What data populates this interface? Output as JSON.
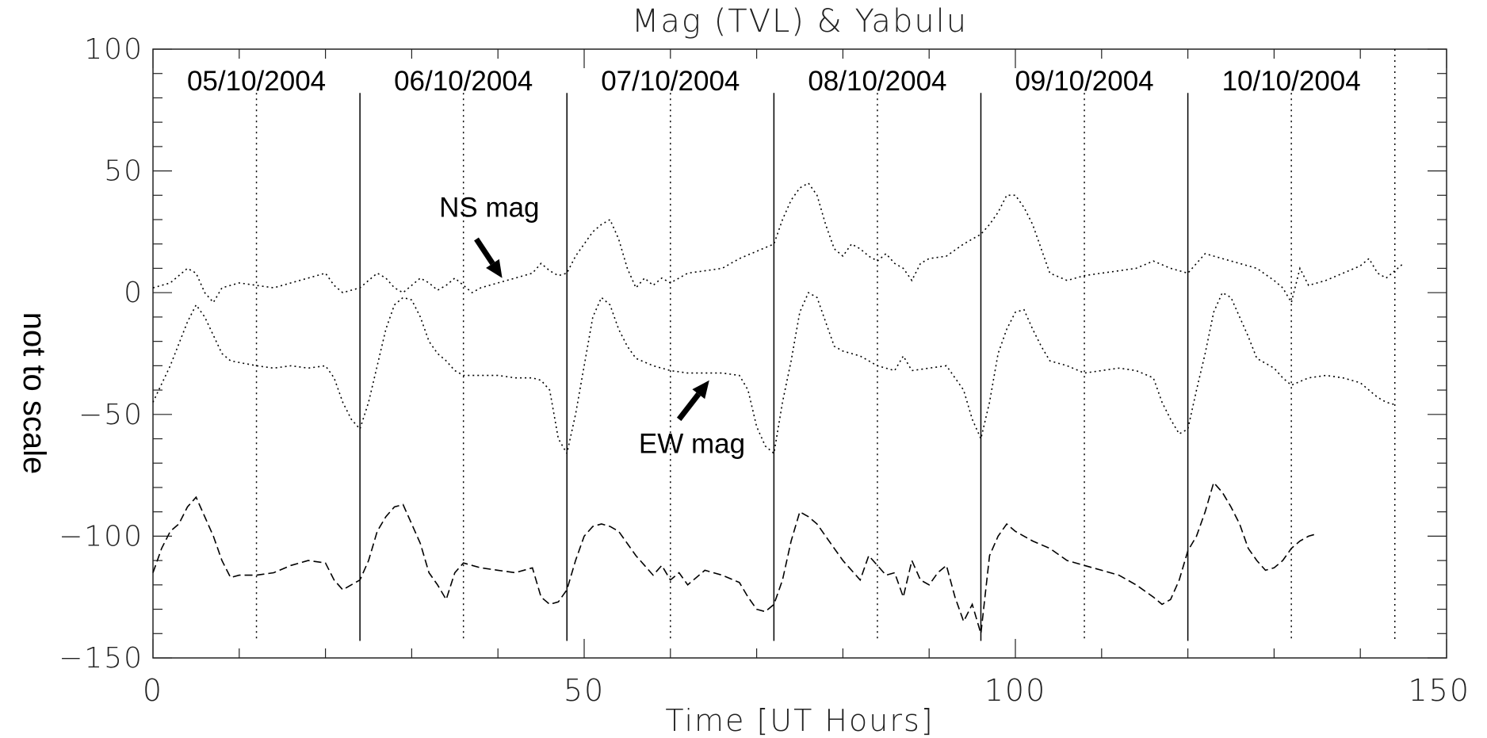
{
  "chart_data": {
    "type": "line",
    "title": "Mag (TVL) & Yabulu",
    "xlabel": "Time [UT Hours]",
    "ylabel": "not to scale",
    "xlim": [
      0,
      150
    ],
    "ylim": [
      -150,
      100
    ],
    "x_ticks": [
      0,
      50,
      100,
      150
    ],
    "x_tick_labels": [
      "0",
      "50",
      "100",
      "150"
    ],
    "y_ticks": [
      100,
      50,
      0,
      -50,
      -100,
      -150
    ],
    "y_tick_labels": [
      "100",
      "50",
      "0",
      "−50",
      "−100",
      "−150"
    ],
    "grid": false,
    "day_labels": [
      {
        "x": 12,
        "text": "05/10/2004"
      },
      {
        "x": 36,
        "text": "06/10/2004"
      },
      {
        "x": 60,
        "text": "07/10/2004"
      },
      {
        "x": 84,
        "text": "08/10/2004"
      },
      {
        "x": 108,
        "text": "09/10/2004"
      },
      {
        "x": 132,
        "text": "10/10/2004"
      }
    ],
    "day_boundaries": [
      24,
      48,
      72,
      96,
      120
    ],
    "midday_markers": [
      12,
      36,
      60,
      84,
      108,
      132,
      144
    ],
    "annotations": [
      {
        "text": "NS mag",
        "label_x": 39,
        "label_y": 35,
        "arrow_from": [
          37.5,
          22
        ],
        "arrow_to": [
          40.5,
          6
        ]
      },
      {
        "text": "EW mag",
        "label_x": 62.5,
        "label_y": -62,
        "arrow_from": [
          61,
          -52
        ],
        "arrow_to": [
          64.5,
          -36
        ]
      }
    ],
    "series": [
      {
        "name": "NS mag",
        "style": "dotted",
        "x": [
          0,
          2,
          4,
          5,
          6,
          7,
          8,
          10,
          12,
          14,
          16,
          18,
          20,
          21,
          22,
          23,
          24,
          25,
          26,
          27,
          28,
          29,
          30,
          31,
          32,
          33,
          34,
          35,
          36,
          37,
          38,
          40,
          42,
          44,
          45,
          46,
          47,
          48,
          49,
          50,
          51,
          52,
          53,
          54,
          55,
          56,
          57,
          58,
          59,
          60,
          62,
          64,
          66,
          68,
          70,
          72,
          73,
          74,
          75,
          76,
          77,
          78,
          79,
          80,
          81,
          82,
          83,
          84,
          85,
          86,
          87,
          88,
          89,
          90,
          92,
          94,
          96,
          97,
          98,
          99,
          100,
          101,
          102,
          103,
          104,
          106,
          108,
          110,
          112,
          114,
          116,
          118,
          120,
          122,
          124,
          126,
          128,
          130,
          131,
          132,
          133,
          134,
          136,
          138,
          140,
          141,
          142,
          143,
          144,
          145
        ],
        "y": [
          2,
          4,
          10,
          8,
          0,
          -4,
          2,
          4,
          3,
          2,
          4,
          6,
          8,
          3,
          0,
          1,
          2,
          5,
          8,
          6,
          2,
          0,
          3,
          6,
          4,
          1,
          3,
          6,
          3,
          0,
          2,
          4,
          6,
          8,
          12,
          9,
          7,
          8,
          15,
          20,
          25,
          28,
          30,
          22,
          10,
          2,
          6,
          3,
          6,
          4,
          8,
          9,
          10,
          14,
          17,
          20,
          30,
          38,
          43,
          45,
          40,
          28,
          18,
          15,
          20,
          18,
          15,
          13,
          16,
          12,
          10,
          5,
          12,
          14,
          15,
          20,
          24,
          28,
          33,
          40,
          40,
          35,
          28,
          18,
          8,
          5,
          7,
          8,
          9,
          10,
          13,
          10,
          8,
          16,
          14,
          12,
          10,
          5,
          2,
          -4,
          10,
          3,
          5,
          8,
          11,
          14,
          8,
          6,
          9,
          12
        ]
      },
      {
        "name": "EW mag",
        "style": "dotted",
        "x": [
          0,
          2,
          4,
          5,
          6,
          8,
          9,
          12,
          14,
          16,
          18,
          20,
          21,
          22,
          23,
          24,
          25,
          26,
          27,
          28,
          29,
          30,
          31,
          32,
          33,
          34,
          35,
          36,
          38,
          40,
          42,
          44,
          45,
          46,
          47,
          48,
          49,
          50,
          51,
          52,
          53,
          54,
          55,
          56,
          58,
          60,
          62,
          64,
          66,
          68,
          69,
          70,
          71,
          72,
          73,
          74,
          75,
          76,
          77,
          78,
          79,
          80,
          82,
          84,
          86,
          87,
          88,
          90,
          92,
          94,
          95,
          96,
          97,
          98,
          99,
          100,
          101,
          102,
          103,
          104,
          106,
          108,
          110,
          112,
          114,
          116,
          117,
          118,
          119,
          120,
          121,
          122,
          123,
          124,
          125,
          126,
          127,
          128,
          130,
          131,
          132,
          134,
          136,
          138,
          140,
          141,
          142,
          143,
          144
        ],
        "y": [
          -45,
          -30,
          -12,
          -5,
          -10,
          -25,
          -28,
          -30,
          -31,
          -30,
          -31,
          -30,
          -35,
          -45,
          -52,
          -56,
          -45,
          -30,
          -15,
          -5,
          -2,
          -3,
          -10,
          -20,
          -25,
          -28,
          -32,
          -34,
          -34,
          -34,
          -35,
          -35,
          -36,
          -40,
          -60,
          -66,
          -50,
          -30,
          -10,
          -2,
          -5,
          -15,
          -22,
          -27,
          -30,
          -32,
          -33,
          -33,
          -33,
          -34,
          -40,
          -55,
          -63,
          -66,
          -45,
          -28,
          -8,
          0,
          -2,
          -12,
          -22,
          -24,
          -26,
          -30,
          -32,
          -26,
          -32,
          -31,
          -30,
          -40,
          -52,
          -60,
          -45,
          -25,
          -15,
          -8,
          -7,
          -15,
          -22,
          -28,
          -30,
          -33,
          -32,
          -31,
          -32,
          -35,
          -45,
          -52,
          -58,
          -56,
          -40,
          -25,
          -8,
          0,
          -2,
          -10,
          -18,
          -27,
          -31,
          -35,
          -38,
          -35,
          -34,
          -35,
          -37,
          -40,
          -43,
          -45,
          -46
        ]
      },
      {
        "name": "Yabulu",
        "style": "dashed",
        "x": [
          0,
          1,
          2,
          3,
          4,
          5,
          6,
          7,
          8,
          9,
          10,
          12,
          14,
          16,
          18,
          20,
          21,
          22,
          23,
          24,
          25,
          26,
          27,
          28,
          29,
          30,
          31,
          32,
          33,
          34,
          35,
          36,
          38,
          40,
          42,
          44,
          45,
          46,
          47,
          48,
          49,
          50,
          51,
          52,
          53,
          54,
          55,
          56,
          57,
          58,
          59,
          60,
          61,
          62,
          64,
          66,
          68,
          69,
          70,
          71,
          72,
          73,
          74,
          75,
          76,
          77,
          78,
          79,
          80,
          81,
          82,
          83,
          84,
          85,
          86,
          87,
          88,
          89,
          90,
          91,
          92,
          93,
          94,
          95,
          96,
          97,
          98,
          99,
          100,
          101,
          102,
          104,
          106,
          108,
          110,
          112,
          114,
          116,
          117,
          118,
          119,
          120,
          121,
          122,
          123,
          124,
          125,
          126,
          127,
          128,
          129,
          130,
          131,
          132,
          133,
          134,
          135
        ],
        "y": [
          -115,
          -105,
          -98,
          -95,
          -88,
          -84,
          -92,
          -100,
          -110,
          -117,
          -116,
          -116,
          -115,
          -112,
          -110,
          -111,
          -118,
          -122,
          -120,
          -118,
          -110,
          -98,
          -92,
          -88,
          -87,
          -95,
          -103,
          -115,
          -120,
          -126,
          -115,
          -111,
          -113,
          -114,
          -115,
          -113,
          -125,
          -128,
          -127,
          -122,
          -110,
          -100,
          -96,
          -95,
          -96,
          -98,
          -103,
          -108,
          -112,
          -116,
          -112,
          -118,
          -115,
          -120,
          -114,
          -116,
          -119,
          -125,
          -130,
          -131,
          -128,
          -118,
          -102,
          -90,
          -92,
          -95,
          -100,
          -105,
          -110,
          -114,
          -118,
          -108,
          -112,
          -116,
          -115,
          -125,
          -110,
          -118,
          -120,
          -115,
          -112,
          -125,
          -135,
          -128,
          -140,
          -108,
          -100,
          -95,
          -98,
          -100,
          -102,
          -105,
          -110,
          -112,
          -114,
          -116,
          -120,
          -125,
          -128,
          -126,
          -118,
          -106,
          -100,
          -90,
          -78,
          -82,
          -88,
          -95,
          -105,
          -110,
          -114,
          -113,
          -110,
          -105,
          -102,
          -100,
          -99
        ]
      }
    ]
  }
}
